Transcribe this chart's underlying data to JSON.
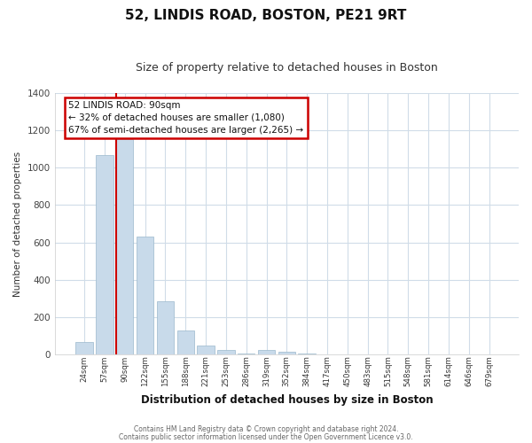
{
  "title": "52, LINDIS ROAD, BOSTON, PE21 9RT",
  "subtitle": "Size of property relative to detached houses in Boston",
  "xlabel": "Distribution of detached houses by size in Boston",
  "ylabel": "Number of detached properties",
  "bar_color": "#c8daea",
  "bar_edge_color": "#9bb8cc",
  "vline_color": "#cc0000",
  "vline_x_index": 2,
  "categories": [
    "24sqm",
    "57sqm",
    "90sqm",
    "122sqm",
    "155sqm",
    "188sqm",
    "221sqm",
    "253sqm",
    "286sqm",
    "319sqm",
    "352sqm",
    "384sqm",
    "417sqm",
    "450sqm",
    "483sqm",
    "515sqm",
    "548sqm",
    "581sqm",
    "614sqm",
    "646sqm",
    "679sqm"
  ],
  "values": [
    65,
    1070,
    1155,
    630,
    285,
    130,
    47,
    22,
    5,
    22,
    15,
    5,
    0,
    0,
    0,
    0,
    0,
    0,
    0,
    0,
    0
  ],
  "ylim": [
    0,
    1400
  ],
  "yticks": [
    0,
    200,
    400,
    600,
    800,
    1000,
    1200,
    1400
  ],
  "annotation_title": "52 LINDIS ROAD: 90sqm",
  "annotation_line1": "← 32% of detached houses are smaller (1,080)",
  "annotation_line2": "67% of semi-detached houses are larger (2,265) →",
  "footer1": "Contains HM Land Registry data © Crown copyright and database right 2024.",
  "footer2": "Contains public sector information licensed under the Open Government Licence v3.0.",
  "plot_bg_color": "#ffffff",
  "fig_bg_color": "#ffffff",
  "grid_color": "#d0dce8",
  "box_edge_color": "#cc0000",
  "title_fontsize": 11,
  "subtitle_fontsize": 9
}
